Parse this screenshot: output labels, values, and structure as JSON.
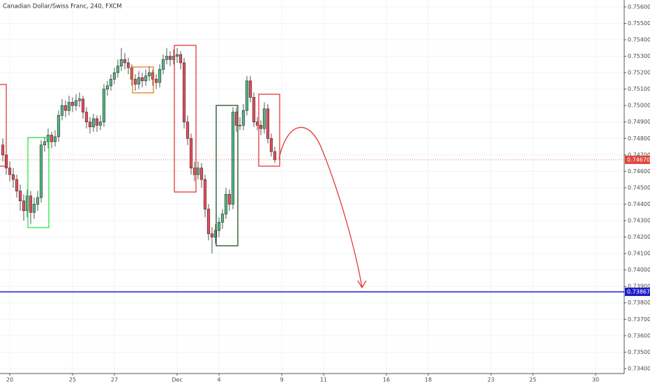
{
  "chart_data": {
    "type": "candlestick",
    "title": "Canadian Dollar/Swiss Franc, 240, FXCM",
    "up_color": "#53b987",
    "down_color": "#eb4d5c",
    "grid": true,
    "x": [
      -2,
      -1,
      0,
      1,
      2,
      3,
      4,
      5,
      6,
      7,
      8,
      9,
      10,
      11,
      12,
      13,
      14,
      15,
      16,
      17,
      18,
      19,
      20,
      21,
      22,
      23,
      24,
      25,
      26,
      27,
      28,
      29,
      30,
      31,
      32,
      33,
      34,
      35,
      36,
      37,
      38,
      39,
      40,
      41,
      42,
      43,
      44,
      45,
      46,
      47,
      48,
      49,
      50,
      51,
      52,
      53,
      54,
      55,
      56,
      57,
      58,
      59,
      60,
      61,
      62,
      63,
      64,
      65,
      66,
      67,
      68,
      69,
      70,
      71,
      72,
      73,
      74,
      75,
      76
    ],
    "ohlc": [
      [
        0.7476,
        0.748,
        0.7466,
        0.747
      ],
      [
        0.747,
        0.7473,
        0.7458,
        0.7462
      ],
      [
        0.7462,
        0.7466,
        0.7454,
        0.7458
      ],
      [
        0.7458,
        0.7462,
        0.745,
        0.7455
      ],
      [
        0.7455,
        0.7458,
        0.7444,
        0.7448
      ],
      [
        0.7448,
        0.7452,
        0.7436,
        0.7442
      ],
      [
        0.7442,
        0.7446,
        0.743,
        0.7436
      ],
      [
        0.7436,
        0.7449,
        0.7432,
        0.7445
      ],
      [
        0.7445,
        0.7448,
        0.7428,
        0.7435
      ],
      [
        0.7435,
        0.7444,
        0.7431,
        0.744
      ],
      [
        0.744,
        0.7448,
        0.7436,
        0.7444
      ],
      [
        0.7444,
        0.7479,
        0.7441,
        0.7476
      ],
      [
        0.7476,
        0.7481,
        0.7472,
        0.7478
      ],
      [
        0.7478,
        0.7486,
        0.7474,
        0.7482
      ],
      [
        0.7482,
        0.7484,
        0.7474,
        0.7478
      ],
      [
        0.7478,
        0.7485,
        0.7475,
        0.7481
      ],
      [
        0.7481,
        0.7497,
        0.7478,
        0.7494
      ],
      [
        0.7494,
        0.7504,
        0.7491,
        0.75
      ],
      [
        0.75,
        0.7503,
        0.7493,
        0.7497
      ],
      [
        0.7497,
        0.7506,
        0.7494,
        0.7502
      ],
      [
        0.7502,
        0.7505,
        0.7496,
        0.75
      ],
      [
        0.75,
        0.7507,
        0.7497,
        0.7503
      ],
      [
        0.7503,
        0.7508,
        0.7499,
        0.7504
      ],
      [
        0.7504,
        0.7506,
        0.7492,
        0.7496
      ],
      [
        0.7496,
        0.7499,
        0.7486,
        0.749
      ],
      [
        0.749,
        0.7493,
        0.7483,
        0.7487
      ],
      [
        0.7487,
        0.7495,
        0.7484,
        0.7492
      ],
      [
        0.7492,
        0.7494,
        0.7484,
        0.7488
      ],
      [
        0.7488,
        0.7494,
        0.7485,
        0.749
      ],
      [
        0.749,
        0.7513,
        0.7487,
        0.751
      ],
      [
        0.751,
        0.7515,
        0.7506,
        0.7512
      ],
      [
        0.7512,
        0.7519,
        0.7509,
        0.7516
      ],
      [
        0.7516,
        0.7523,
        0.7513,
        0.752
      ],
      [
        0.752,
        0.7528,
        0.7517,
        0.7524
      ],
      [
        0.7524,
        0.7535,
        0.7521,
        0.7528
      ],
      [
        0.7528,
        0.7532,
        0.7522,
        0.7526
      ],
      [
        0.7526,
        0.7529,
        0.7519,
        0.7523
      ],
      [
        0.7523,
        0.7525,
        0.7512,
        0.7516
      ],
      [
        0.7516,
        0.7519,
        0.7509,
        0.7513
      ],
      [
        0.7513,
        0.7521,
        0.751,
        0.7517
      ],
      [
        0.7517,
        0.752,
        0.7511,
        0.7515
      ],
      [
        0.7515,
        0.7522,
        0.7512,
        0.7518
      ],
      [
        0.7518,
        0.7524,
        0.7515,
        0.752
      ],
      [
        0.752,
        0.7522,
        0.7512,
        0.7516
      ],
      [
        0.7516,
        0.7519,
        0.751,
        0.7514
      ],
      [
        0.7514,
        0.7525,
        0.7511,
        0.7522
      ],
      [
        0.7522,
        0.7531,
        0.7519,
        0.7528
      ],
      [
        0.7528,
        0.7535,
        0.7525,
        0.753
      ],
      [
        0.753,
        0.7533,
        0.7524,
        0.7528
      ],
      [
        0.7528,
        0.7534,
        0.7525,
        0.753
      ],
      [
        0.753,
        0.7535,
        0.7526,
        0.7531
      ],
      [
        0.7531,
        0.7533,
        0.7522,
        0.7526
      ],
      [
        0.7526,
        0.7529,
        0.7486,
        0.749
      ],
      [
        0.749,
        0.7494,
        0.7476,
        0.748
      ],
      [
        0.748,
        0.7483,
        0.7458,
        0.7462
      ],
      [
        0.7462,
        0.7466,
        0.7454,
        0.7458
      ],
      [
        0.7458,
        0.7466,
        0.7455,
        0.7462
      ],
      [
        0.7462,
        0.7465,
        0.745,
        0.7455
      ],
      [
        0.7455,
        0.7458,
        0.7432,
        0.7437
      ],
      [
        0.7437,
        0.744,
        0.7418,
        0.7422
      ],
      [
        0.7422,
        0.7426,
        0.741,
        0.742
      ],
      [
        0.742,
        0.7428,
        0.7416,
        0.7424
      ],
      [
        0.7424,
        0.7432,
        0.742,
        0.7429
      ],
      [
        0.7429,
        0.7437,
        0.7425,
        0.7434
      ],
      [
        0.7434,
        0.745,
        0.7431,
        0.7446
      ],
      [
        0.7446,
        0.7449,
        0.7436,
        0.744
      ],
      [
        0.744,
        0.7499,
        0.7437,
        0.7496
      ],
      [
        0.7496,
        0.7499,
        0.7484,
        0.7488
      ],
      [
        0.7488,
        0.7493,
        0.7485,
        0.7488
      ],
      [
        0.7488,
        0.7501,
        0.7485,
        0.7497
      ],
      [
        0.7497,
        0.7518,
        0.7494,
        0.7515
      ],
      [
        0.7515,
        0.7518,
        0.7502,
        0.7505
      ],
      [
        0.7505,
        0.7508,
        0.7487,
        0.749
      ],
      [
        0.749,
        0.7493,
        0.7485,
        0.7488
      ],
      [
        0.7488,
        0.7491,
        0.7482,
        0.7486
      ],
      [
        0.7486,
        0.7502,
        0.7483,
        0.7498
      ],
      [
        0.7498,
        0.7501,
        0.7477,
        0.748
      ],
      [
        0.748,
        0.7483,
        0.7469,
        0.7472
      ],
      [
        0.7472,
        0.7475,
        0.7465,
        0.7467
      ]
    ],
    "xlim": [
      -2.8,
      176.2
    ],
    "xticks": [
      {
        "value": 0,
        "label": "20"
      },
      {
        "value": 18,
        "label": "25"
      },
      {
        "value": 30,
        "label": "27"
      },
      {
        "value": 48,
        "label": "Dec"
      },
      {
        "value": 60,
        "label": "4"
      },
      {
        "value": 78,
        "label": "9"
      },
      {
        "value": 90,
        "label": "11"
      },
      {
        "value": 108,
        "label": "16"
      },
      {
        "value": 120,
        "label": "18"
      },
      {
        "value": 138,
        "label": "23"
      },
      {
        "value": 150,
        "label": "25"
      },
      {
        "value": 168,
        "label": "30"
      }
    ],
    "ylim": [
      0.7337,
      0.75642
    ],
    "yticks": [
      {
        "value": 0.734,
        "label": "0.73400"
      },
      {
        "value": 0.735,
        "label": "0.73500"
      },
      {
        "value": 0.736,
        "label": "0.73600"
      },
      {
        "value": 0.737,
        "label": "0.73700"
      },
      {
        "value": 0.738,
        "label": "0.73800"
      },
      {
        "value": 0.739,
        "label": "0.73900"
      },
      {
        "value": 0.74,
        "label": "0.74000"
      },
      {
        "value": 0.741,
        "label": "0.74100"
      },
      {
        "value": 0.742,
        "label": "0.74200"
      },
      {
        "value": 0.743,
        "label": "0.74300"
      },
      {
        "value": 0.744,
        "label": "0.74400"
      },
      {
        "value": 0.745,
        "label": "0.74500"
      },
      {
        "value": 0.746,
        "label": "0.74600"
      },
      {
        "value": 0.747,
        "label": "0.74700"
      },
      {
        "value": 0.748,
        "label": "0.74800"
      },
      {
        "value": 0.749,
        "label": "0.74900"
      },
      {
        "value": 0.75,
        "label": "0.75000"
      },
      {
        "value": 0.751,
        "label": "0.75100"
      },
      {
        "value": 0.752,
        "label": "0.75200"
      },
      {
        "value": 0.753,
        "label": "0.75300"
      },
      {
        "value": 0.754,
        "label": "0.75400"
      },
      {
        "value": 0.755,
        "label": "0.75500"
      },
      {
        "value": 0.756,
        "label": "0.75600"
      }
    ],
    "last_price": {
      "value": 0.7467,
      "label": "0.74670",
      "color": "#e0443a"
    },
    "hline": {
      "value": 0.73867,
      "color": "#1f1fc8"
    }
  }
}
